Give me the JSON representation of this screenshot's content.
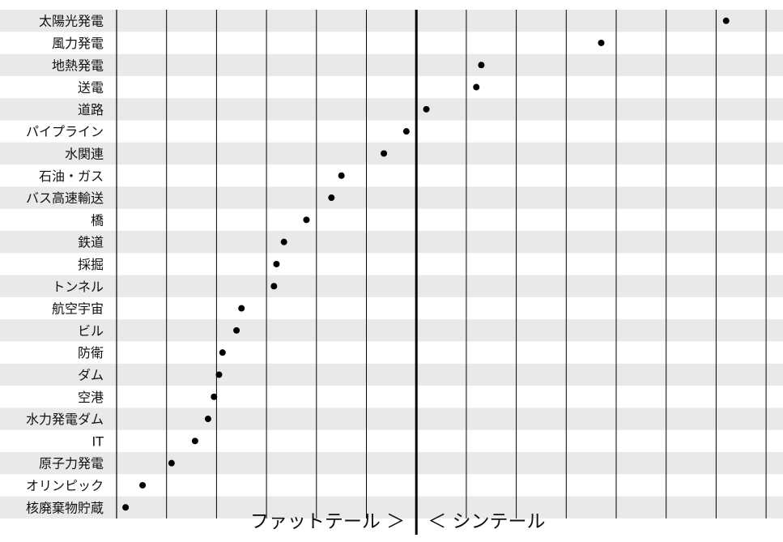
{
  "chart_data": {
    "type": "scatter",
    "title": "",
    "xlabel": "",
    "ylabel": "",
    "grid": true,
    "legend": "none",
    "categories": [
      "太陽光発電",
      "風力発電",
      "地熱発電",
      "送電",
      "道路",
      "パイプライン",
      "水関連",
      "石油・ガス",
      "バス高速輸送",
      "橋",
      "鉄道",
      "採掘",
      "トンネル",
      "航空宇宙",
      "ビル",
      "防衛",
      "ダム",
      "空港",
      "水力発電ダム",
      "IT",
      "原子力発電",
      "オリンピック",
      "核廃棄物貯蔵"
    ],
    "x_range": [
      0,
      13.3
    ],
    "divider_x": 6.0,
    "values": [
      12.2,
      9.7,
      7.3,
      7.2,
      6.2,
      5.8,
      5.35,
      4.5,
      4.3,
      3.8,
      3.35,
      3.2,
      3.15,
      2.5,
      2.4,
      2.12,
      2.05,
      1.95,
      1.83,
      1.57,
      1.1,
      0.52,
      0.18
    ],
    "footer_left": "ファットテール ＞",
    "footer_right": "＜ シンテール",
    "colors": {
      "band": "#e9e9e9",
      "grid": "#000000",
      "point": "#000000"
    }
  }
}
